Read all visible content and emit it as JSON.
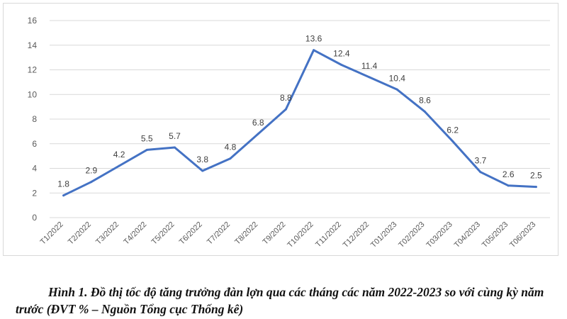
{
  "chart_data": {
    "type": "line",
    "categories": [
      "T1/2022",
      "T2/2022",
      "T3/2022",
      "T4/2022",
      "T5/2022",
      "T6/2022",
      "T7/2022",
      "T8/2022",
      "T9/2022",
      "T10/2022",
      "T11/2022",
      "T12/2022",
      "T01/2023",
      "T02/2023",
      "T03/2023",
      "T04/2023",
      "T05/2023",
      "T06/2023"
    ],
    "series": [
      {
        "values": [
          1.8,
          2.9,
          4.2,
          5.5,
          5.7,
          3.8,
          4.8,
          6.8,
          8.8,
          13.6,
          12.4,
          11.4,
          10.4,
          8.6,
          6.2,
          3.7,
          2.6,
          2.5
        ]
      }
    ],
    "data_labels": [
      "1.8",
      "2.9",
      "4.2",
      "5.5",
      "5.7",
      "3.8",
      "4.8",
      "6.8",
      "8.8",
      "13.6",
      "12.4",
      "11.4",
      "10.4",
      "8.6",
      "6.2",
      "3.7",
      "2.6",
      "2.5"
    ],
    "yticks": [
      "0",
      "2",
      "4",
      "6",
      "8",
      "10",
      "12",
      "14",
      "16"
    ],
    "ylim": [
      0,
      16
    ],
    "grid": true,
    "line_color": "#4472c4",
    "grid_color": "#d9d9d9"
  },
  "caption": "Hình 1. Đồ thị tốc độ tăng trưởng đàn lợn qua các tháng các năm 2022-2023 so với cùng kỳ năm trước (ĐVT % – Nguồn Tổng cục Thống kê)"
}
